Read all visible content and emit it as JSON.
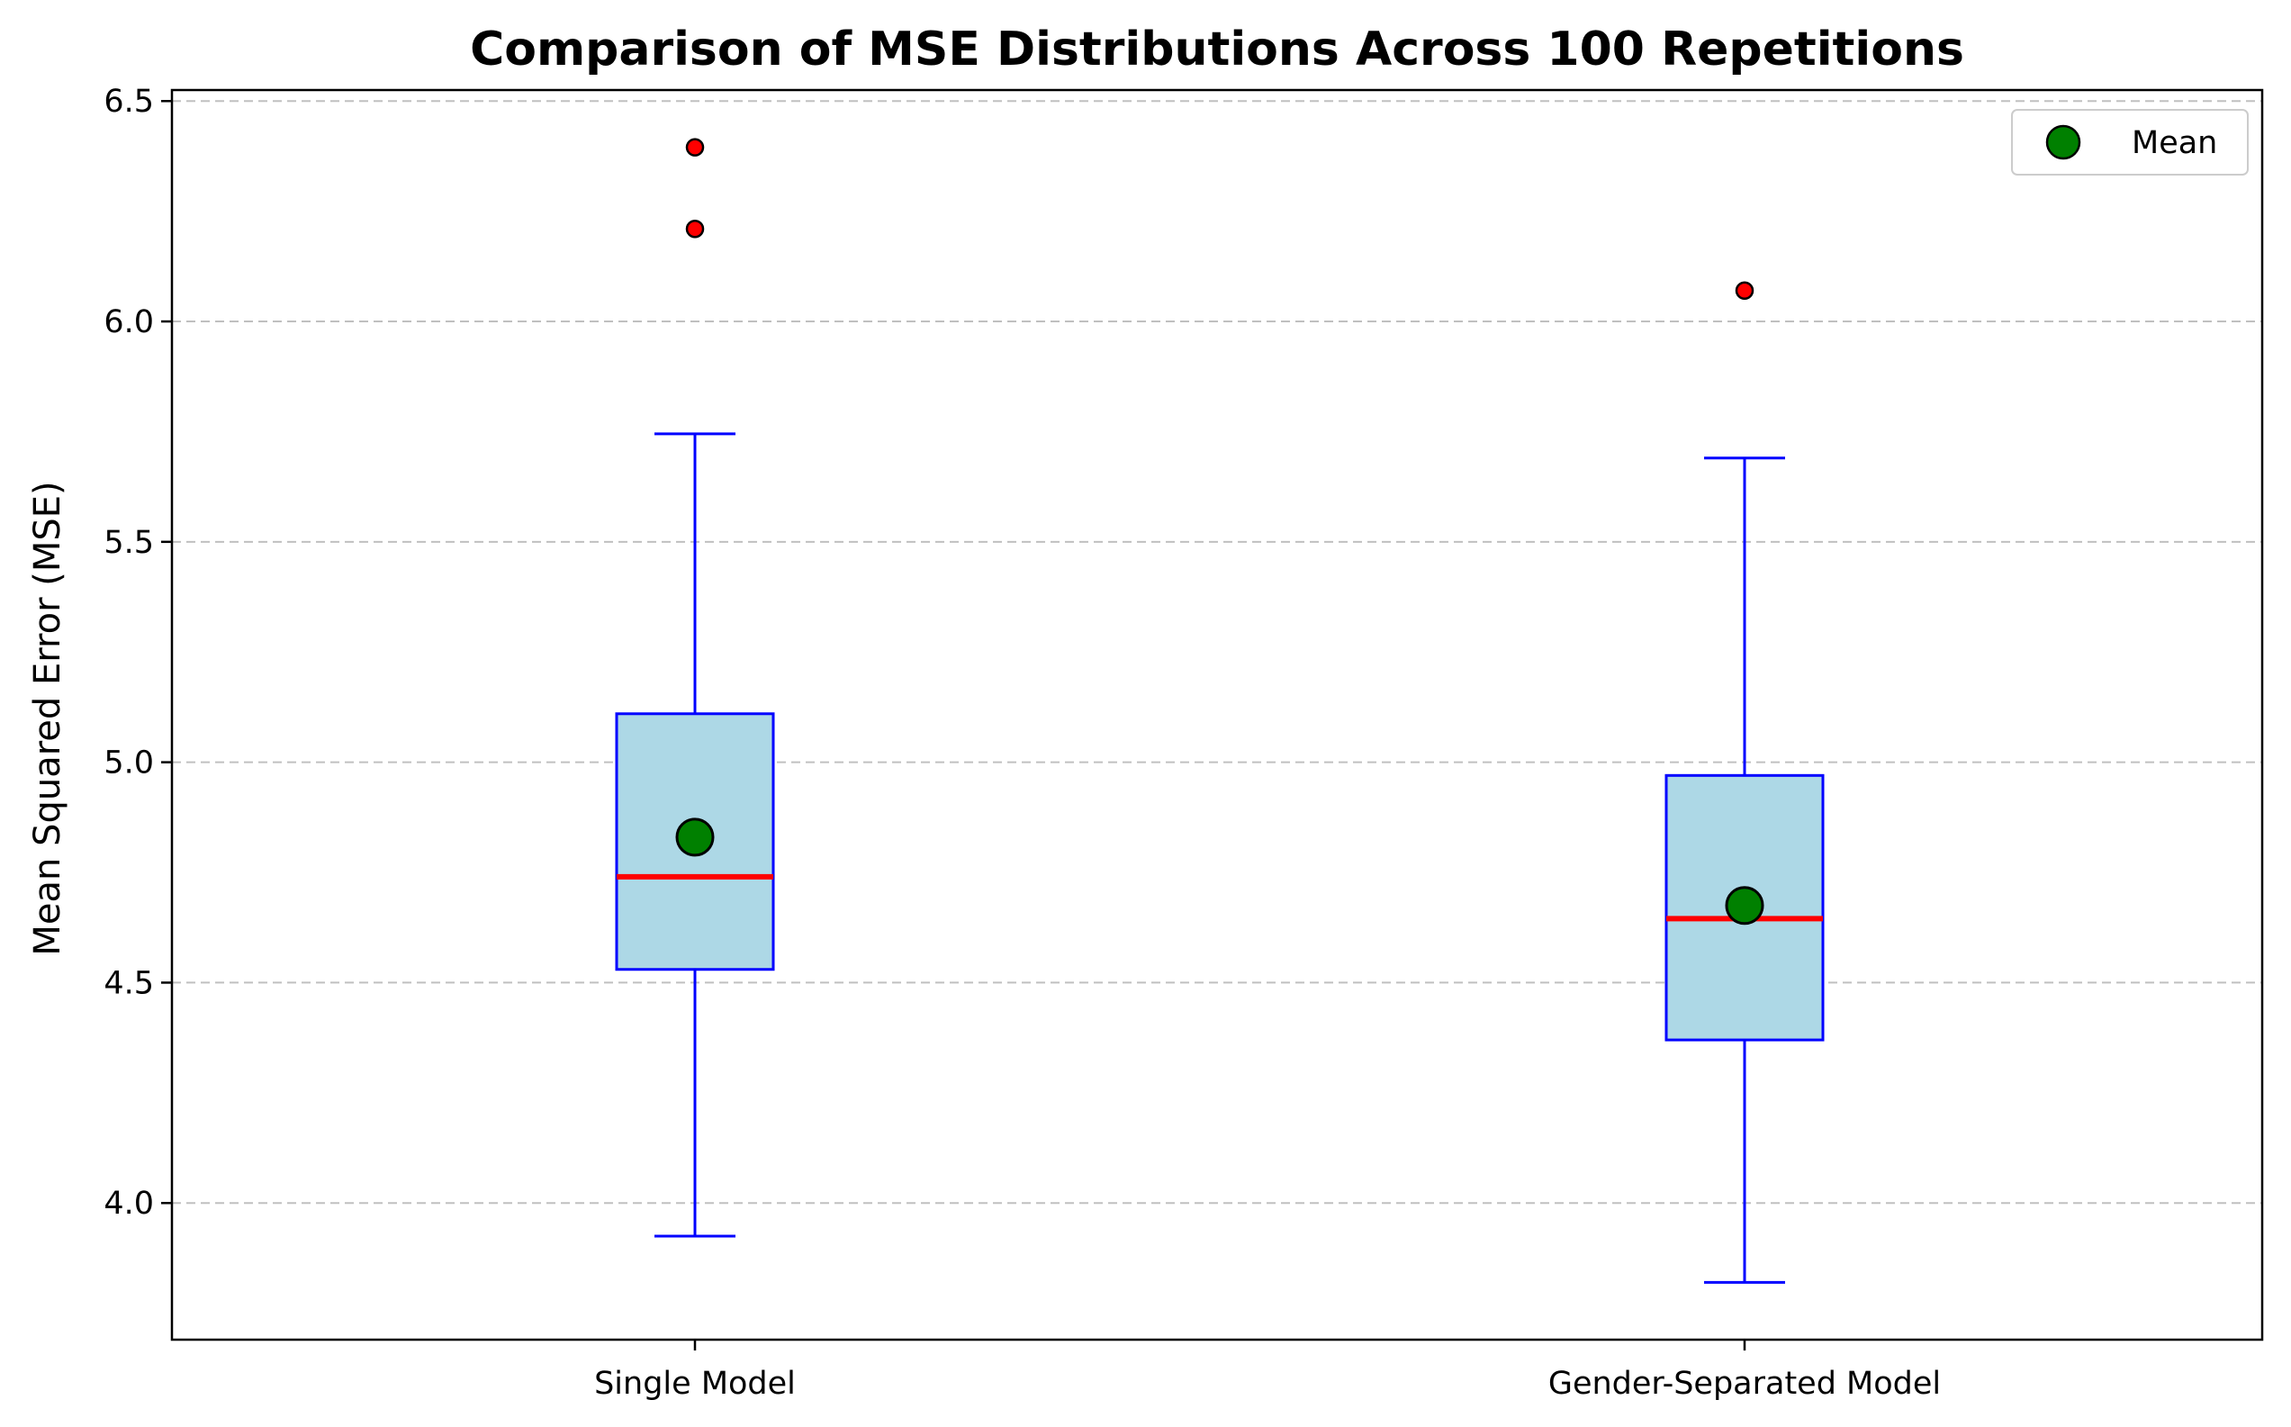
{
  "chart_data": {
    "type": "box",
    "title": "Comparison of MSE Distributions Across 100 Repetitions",
    "xlabel": "",
    "ylabel": "Mean Squared Error (MSE)",
    "ylim": [
      3.69,
      6.525
    ],
    "yticks": [
      "4.0",
      "4.5",
      "5.0",
      "5.5",
      "6.0",
      "6.5"
    ],
    "ytick_values": [
      4.0,
      4.5,
      5.0,
      5.5,
      6.0,
      6.5
    ],
    "grid": "y-dashed",
    "legend": {
      "position": "top-right",
      "entries": [
        "Mean"
      ]
    },
    "categories": [
      "Single Model",
      "Gender-Separated Model"
    ],
    "boxes": [
      {
        "name": "Single Model",
        "whisker_low": 3.925,
        "q1": 4.53,
        "median": 4.74,
        "q3": 5.11,
        "whisker_high": 5.745,
        "mean": 4.83,
        "outliers": [
          6.21,
          6.395
        ]
      },
      {
        "name": "Gender-Separated Model",
        "whisker_low": 3.82,
        "q1": 4.37,
        "median": 4.645,
        "q3": 4.97,
        "whisker_high": 5.69,
        "mean": 4.675,
        "outliers": [
          6.07
        ]
      }
    ],
    "colors": {
      "box_face": "#add8e6",
      "box_edge": "#0000ff",
      "median": "#ff0000",
      "mean_marker": "#008000",
      "outlier": "#ff0000",
      "grid": "#c0c0c0"
    }
  }
}
